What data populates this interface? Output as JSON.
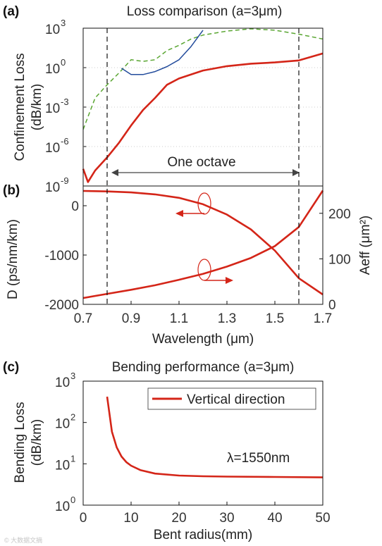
{
  "colors": {
    "red": "#d42518",
    "green": "#5aa632",
    "blue": "#234c9c",
    "black": "#111111",
    "text": "#222222",
    "grid": "#bdbdbd"
  },
  "panel_a": {
    "label": "(a)",
    "title": "Loss comparison (a=3μm)",
    "ylabel_1": "Confinement Loss",
    "ylabel_2": "(dB/km)",
    "annotation": "One octave"
  },
  "panel_b": {
    "label": "(b)",
    "xlabel": "Wavelength (μm)",
    "ylabel_left": "D (ps/nm/km)",
    "ylabel_right": "Aeff (μm²)"
  },
  "panel_c": {
    "label": "(c)",
    "title": "Bending performance (a=3μm)",
    "ylabel_1": "Bending Loss",
    "ylabel_2": "(dB/km)",
    "xlabel": "Bent radius(mm)",
    "legend": "Vertical direction",
    "annotation": "λ=1550nm"
  },
  "watermark": "© 大数据文摘",
  "chart_data": [
    {
      "type": "line",
      "title": "Loss comparison (a=3μm)",
      "ylabel": "Confinement Loss (dB/km)",
      "yscale": "log",
      "xlim": [
        0.7,
        1.7
      ],
      "ylim": [
        1e-09,
        1000
      ],
      "yticks": [
        {
          "exp": "-9",
          "value": 1e-09
        },
        {
          "exp": "-6",
          "value": 1e-06
        },
        {
          "exp": "-3",
          "value": 0.001
        },
        {
          "exp": "0",
          "value": 1
        },
        {
          "exp": "3",
          "value": 1000
        }
      ],
      "grid": true,
      "band_edges": [
        0.8,
        1.6
      ],
      "series": [
        {
          "color": "#d42518",
          "style": "solid",
          "x": [
            0.7,
            0.72,
            0.75,
            0.8,
            0.85,
            0.9,
            0.95,
            1.0,
            1.05,
            1.1,
            1.2,
            1.3,
            1.4,
            1.5,
            1.6,
            1.7
          ],
          "y": [
            2e-08,
            2e-09,
            1.5e-08,
            1.5e-07,
            2e-06,
            4e-05,
            0.0006,
            0.005,
            0.05,
            0.15,
            0.6,
            1.3,
            2,
            2.5,
            3.5,
            12
          ]
        },
        {
          "color": "#5aa632",
          "style": "dashed",
          "x": [
            0.7,
            0.75,
            0.8,
            0.85,
            0.9,
            0.95,
            1.0,
            1.05,
            1.1,
            1.15,
            1.2,
            1.3,
            1.4,
            1.5,
            1.6,
            1.7
          ],
          "y": [
            2e-05,
            0.005,
            0.05,
            0.4,
            4,
            3,
            4,
            20,
            50,
            150,
            300,
            600,
            900,
            700,
            350,
            150
          ]
        },
        {
          "color": "#234c9c",
          "style": "solid",
          "x": [
            0.86,
            0.9,
            0.95,
            1.0,
            1.05,
            1.1,
            1.15,
            1.2
          ],
          "y": [
            0.9,
            0.3,
            0.3,
            0.5,
            1.2,
            4,
            40,
            700
          ]
        }
      ]
    },
    {
      "type": "line",
      "xlabel": "Wavelength (μm)",
      "xlim": [
        0.7,
        1.7
      ],
      "xticks": [
        "0.7",
        "0.9",
        "1.1",
        "1.3",
        "1.5",
        "1.7"
      ],
      "ylabel": "D (ps/nm/km)",
      "ylim": [
        -2000,
        400
      ],
      "yticks": [
        "0",
        "-1000",
        "-2000"
      ],
      "y2label": "Aeff (μm²)",
      "y2lim": [
        0,
        260
      ],
      "y2ticks": [
        "0",
        "100",
        "200"
      ],
      "series": [
        {
          "axis": "left",
          "color": "#d42518",
          "x": [
            0.7,
            0.8,
            0.9,
            1.0,
            1.1,
            1.2,
            1.3,
            1.4,
            1.5,
            1.6,
            1.7
          ],
          "y": [
            300,
            290,
            270,
            230,
            160,
            30,
            -180,
            -480,
            -910,
            -1470,
            -1800
          ]
        },
        {
          "axis": "right",
          "color": "#d42518",
          "x": [
            0.7,
            0.8,
            0.9,
            1.0,
            1.1,
            1.2,
            1.3,
            1.4,
            1.5,
            1.6,
            1.7
          ],
          "y": [
            14,
            23,
            32,
            42,
            54,
            67,
            83,
            102,
            128,
            170,
            250
          ]
        }
      ]
    },
    {
      "type": "line",
      "title": "Bending performance (a=3μm)",
      "xlabel": "Bent radius(mm)",
      "xlim": [
        0,
        50
      ],
      "xticks": [
        "0",
        "10",
        "20",
        "30",
        "40",
        "50"
      ],
      "ylabel": "Bending Loss (dB/km)",
      "yscale": "log",
      "ylim": [
        1,
        1000
      ],
      "yticks": [
        {
          "exp": "0",
          "value": 1
        },
        {
          "exp": "1",
          "value": 10
        },
        {
          "exp": "2",
          "value": 100
        },
        {
          "exp": "3",
          "value": 1000
        }
      ],
      "series": [
        {
          "name": "Vertical direction",
          "color": "#d42518",
          "x": [
            5,
            6,
            7,
            8,
            9,
            10,
            12,
            15,
            20,
            25,
            30,
            40,
            50
          ],
          "y": [
            420,
            60,
            25,
            15,
            11,
            9,
            7,
            5.8,
            5.2,
            5.0,
            4.9,
            4.8,
            4.7
          ]
        }
      ]
    }
  ]
}
